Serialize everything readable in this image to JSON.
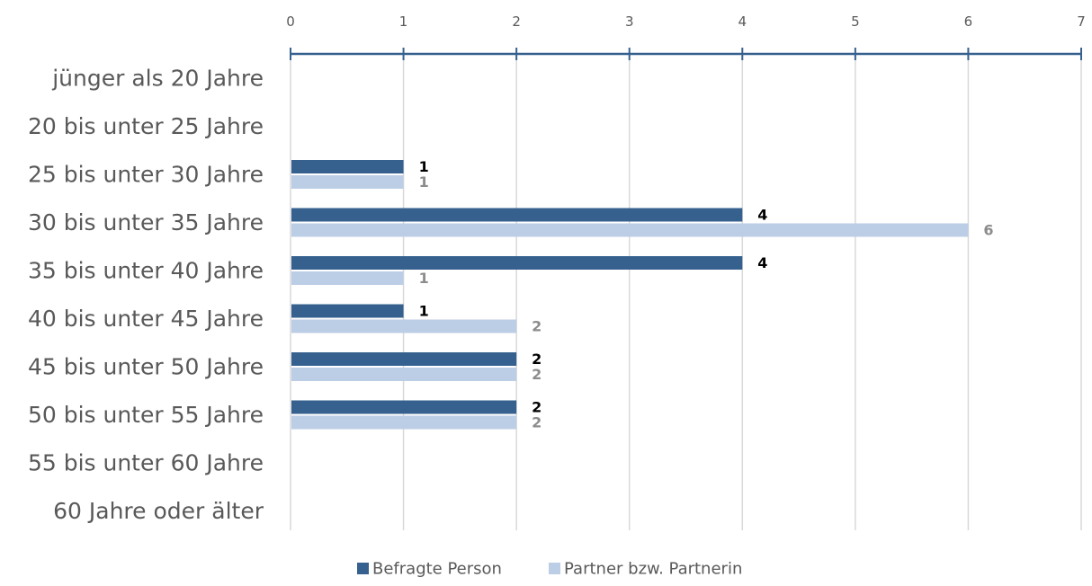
{
  "chart_data": {
    "type": "bar",
    "orientation": "horizontal",
    "axis_position": "top",
    "categories": [
      "jünger als 20 Jahre",
      "20 bis unter 25 Jahre",
      "25 bis unter 30 Jahre",
      "30 bis unter 35 Jahre",
      "35 bis unter 40 Jahre",
      "40 bis unter 45 Jahre",
      "45 bis unter 50 Jahre",
      "50 bis unter 55 Jahre",
      "55 bis unter 60 Jahre",
      "60 Jahre oder älter"
    ],
    "series": [
      {
        "name": "Befragte Person",
        "color": "#36618f",
        "label_color": "#000000",
        "values": [
          null,
          null,
          1,
          4,
          4,
          1,
          2,
          2,
          null,
          null
        ]
      },
      {
        "name": "Partner bzw. Partnerin",
        "color": "#bccde6",
        "label_color": "#8c8c8c",
        "values": [
          null,
          null,
          1,
          6,
          1,
          2,
          2,
          2,
          null,
          null
        ]
      }
    ],
    "xlim": [
      0,
      7
    ],
    "xticks": [
      "0",
      "1",
      "2",
      "3",
      "4",
      "5",
      "6",
      "7"
    ],
    "grid": true,
    "legend": "bottom"
  }
}
